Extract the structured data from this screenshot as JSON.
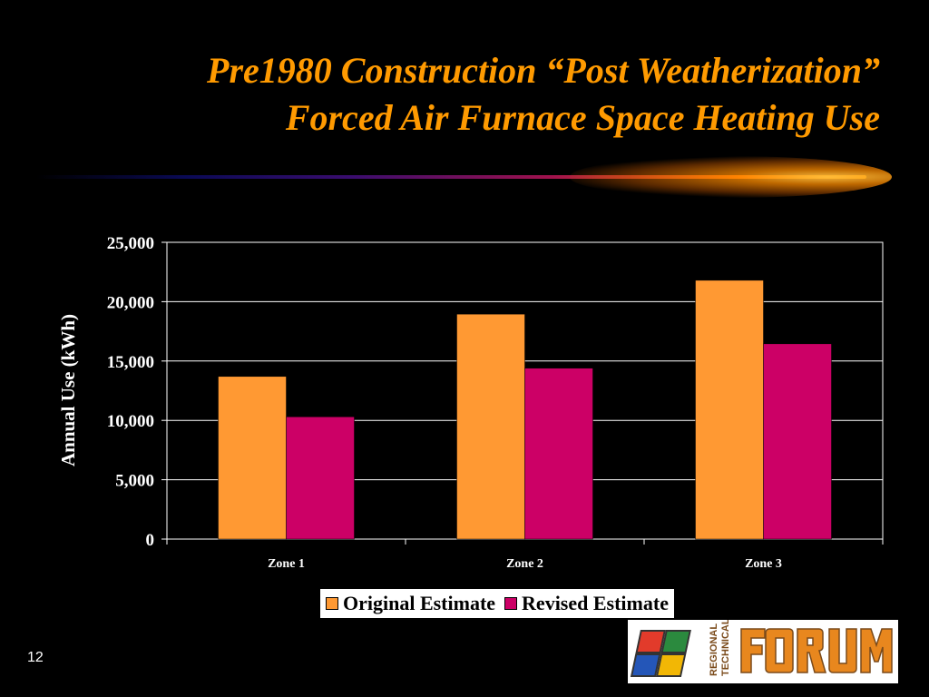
{
  "slide": {
    "title_line1": "Pre1980 Construction “Post Weatherization”",
    "title_line2": "Forced Air Furnace Space Heating Use",
    "page_number": "12",
    "logo_text": "REGIONAL TECHNICAL FORUM"
  },
  "colors": {
    "background": "#000000",
    "title": "#ff9a00",
    "original": "#ff9933",
    "revised": "#cc0066"
  },
  "chart_data": {
    "type": "bar",
    "categories": [
      "Zone 1",
      "Zone 2",
      "Zone 3"
    ],
    "series": [
      {
        "name": "Original Estimate",
        "values": [
          13700,
          18950,
          21800
        ]
      },
      {
        "name": "Revised Estimate",
        "values": [
          10300,
          14400,
          16450
        ]
      }
    ],
    "ylabel": "Annual Use (kWh)",
    "ylim": [
      0,
      25000
    ],
    "yticks": [
      0,
      5000,
      10000,
      15000,
      20000,
      25000
    ],
    "ytick_labels": [
      "0",
      "5,000",
      "10,000",
      "15,000",
      "20,000",
      "25,000"
    ],
    "grid": true,
    "legend": "bottom"
  }
}
